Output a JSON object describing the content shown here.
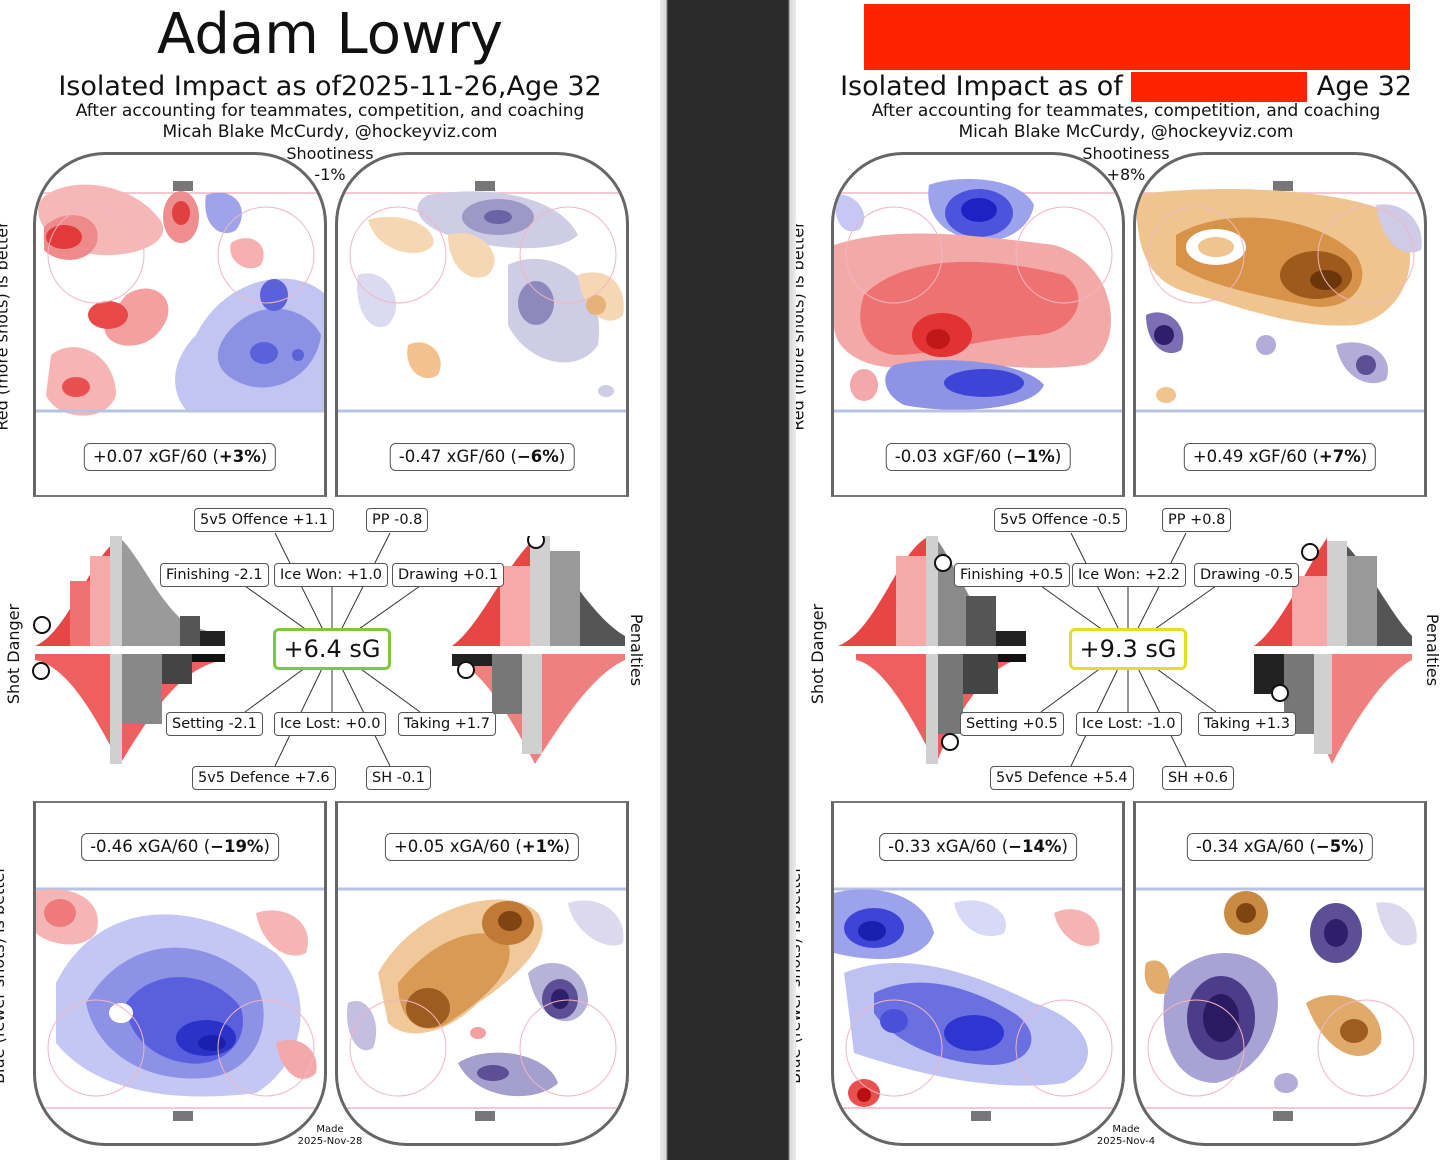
{
  "cards": [
    {
      "player_name": "Adam Lowry",
      "name_redacted": false,
      "iso_prefix": "Isolated Impact as of ",
      "iso_date": "2025-11-26,",
      "iso_suffix": " Age 32",
      "date_redacted": false,
      "subtitle": "After accounting for teammates, competition, and coaching",
      "author": "Micah Blake McCurdy, @hockeyviz.com",
      "shootiness_label": "Shootiness",
      "shootiness_value": "-1%",
      "ylabel_offence": "Red (more shots) is better",
      "ylabel_defence": "Blue (fewer shots) is better",
      "ylabel_shot_danger": "Shot Danger",
      "ylabel_penalties": "Penalties",
      "xgf_team": {
        "value": "+0.07 xGF/60",
        "pct": "+3%"
      },
      "xgf_shooting": {
        "value": "-0.47 xGF/60",
        "pct": "−6%"
      },
      "xga_team": {
        "value": "-0.46 xGA/60",
        "pct": "−19%"
      },
      "xga_shooting": {
        "value": "+0.05 xGA/60",
        "pct": "+1%"
      },
      "total_sg": "+6.4 sG",
      "sg_color": "#7cc940",
      "labels": {
        "offence": "5v5 Offence +1.1",
        "pp": "PP -0.8",
        "finishing": "Finishing -2.1",
        "ice_won": "Ice Won: +1.0",
        "drawing": "Drawing +0.1",
        "setting": "Setting -2.1",
        "ice_lost": "Ice Lost: +0.0",
        "taking": "Taking +1.7",
        "defence": "5v5 Defence +7.6",
        "sh": "SH -0.1"
      },
      "made_label": "Made",
      "made_date": "2025-Nov-28"
    },
    {
      "player_name": "",
      "name_redacted": true,
      "iso_prefix": "Isolated Impact as of",
      "iso_date": "",
      "iso_suffix": "Age 32",
      "date_redacted": true,
      "subtitle": "After accounting for teammates, competition, and coaching",
      "author": "Micah Blake McCurdy, @hockeyviz.com",
      "shootiness_label": "Shootiness",
      "shootiness_value": "+8%",
      "ylabel_offence": "Red (more shots) is better",
      "ylabel_defence": "Blue (fewer shots) is better",
      "ylabel_shot_danger": "Shot Danger",
      "ylabel_penalties": "Penalties",
      "xgf_team": {
        "value": "-0.03 xGF/60",
        "pct": "−1%"
      },
      "xgf_shooting": {
        "value": "+0.49 xGF/60",
        "pct": "+7%"
      },
      "xga_team": {
        "value": "-0.33 xGA/60",
        "pct": "−14%"
      },
      "xga_shooting": {
        "value": "-0.34 xGA/60",
        "pct": "−5%"
      },
      "total_sg": "+9.3 sG",
      "sg_color": "#e2e020",
      "labels": {
        "offence": "5v5 Offence -0.5",
        "pp": "PP +0.8",
        "finishing": "Finishing +0.5",
        "ice_won": "Ice Won: +2.2",
        "drawing": "Drawing -0.5",
        "setting": "Setting +0.5",
        "ice_lost": "Ice Lost: -1.0",
        "taking": "Taking +1.3",
        "defence": "5v5 Defence +5.4",
        "sh": "SH +0.6"
      },
      "made_label": "Made",
      "made_date": "2025-Nov-4"
    }
  ]
}
